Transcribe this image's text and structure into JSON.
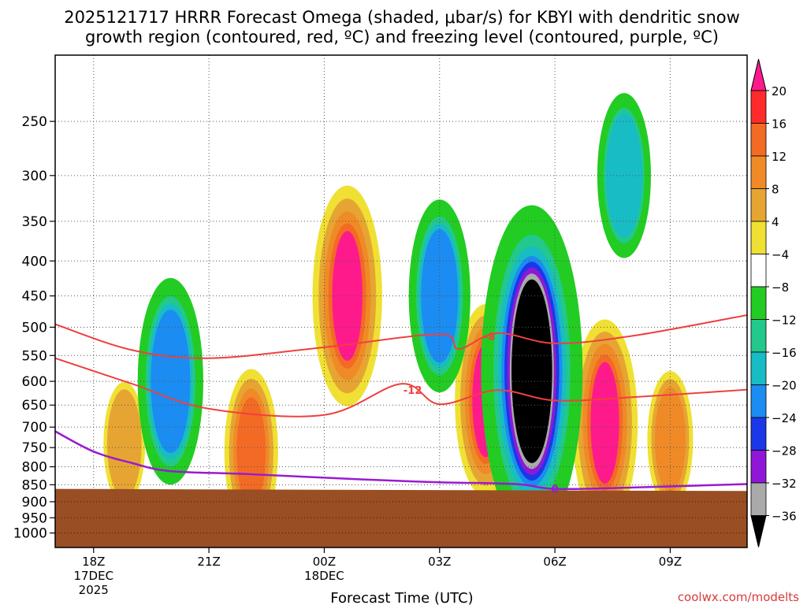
{
  "chart_data": {
    "type": "heatmap",
    "title_line1": "2025121717 HRRR Forecast Omega (shaded, μbar/s) for KBYI with dendritic snow",
    "title_line2": "growth region (contoured, red, ºC) and freezing level (contoured, purple, ºC)",
    "xlabel": "Forecast Time (UTC)",
    "ylabel": "",
    "watermark": "coolwx.com/modelts",
    "x_axis": {
      "hours_range": [
        -1,
        17
      ],
      "ticks": [
        {
          "hour": 0,
          "label": "18Z",
          "sub1": "17DEC",
          "sub2": "2025"
        },
        {
          "hour": 3,
          "label": "21Z",
          "sub1": "",
          "sub2": ""
        },
        {
          "hour": 6,
          "label": "00Z",
          "sub1": "18DEC",
          "sub2": ""
        },
        {
          "hour": 9,
          "label": "03Z",
          "sub1": "",
          "sub2": ""
        },
        {
          "hour": 12,
          "label": "06Z",
          "sub1": "",
          "sub2": ""
        },
        {
          "hour": 15,
          "label": "09Z",
          "sub1": "",
          "sub2": ""
        }
      ]
    },
    "y_axis": {
      "scale": "log-pressure",
      "range_hpa": [
        200,
        1050
      ],
      "ticks": [
        {
          "p": 250,
          "label": "250"
        },
        {
          "p": 300,
          "label": "300"
        },
        {
          "p": 350,
          "label": "350"
        },
        {
          "p": 400,
          "label": "400"
        },
        {
          "p": 450,
          "label": "450"
        },
        {
          "p": 500,
          "label": "500"
        },
        {
          "p": 550,
          "label": "550"
        },
        {
          "p": 600,
          "label": "600"
        },
        {
          "p": 650,
          "label": "650"
        },
        {
          "p": 700,
          "label": "700"
        },
        {
          "p": 750,
          "label": "750"
        },
        {
          "p": 800,
          "label": "800"
        },
        {
          "p": 850,
          "label": "850"
        },
        {
          "p": 900,
          "label": "900"
        },
        {
          "p": 950,
          "label": "950"
        },
        {
          "p": 1000,
          "label": "1000"
        }
      ]
    },
    "colorbar": {
      "labels": [
        "20",
        "16",
        "12",
        "8",
        "4",
        "−4",
        "−8",
        "−12",
        "−16",
        "−20",
        "−24",
        "−28",
        "−32",
        "−36"
      ],
      "colors": [
        "#ff1a8c",
        "#ff2a2a",
        "#f36a25",
        "#f08a27",
        "#e6a532",
        "#f0e033",
        "#ffffff",
        "#22cc22",
        "#22c88c",
        "#18bcc4",
        "#1a8cf2",
        "#1a38e8",
        "#8f18d8",
        "#aaaaaa",
        "#000000"
      ]
    },
    "omega_features": [
      {
        "kind": "rising",
        "center_hour": 6.6,
        "center_hpa": 450,
        "peak": 24,
        "levels": [
          "4",
          "8",
          "12",
          "16",
          "20"
        ]
      },
      {
        "kind": "rising",
        "center_hour": 13.3,
        "center_hpa": 690,
        "peak": 22,
        "levels": [
          "4",
          "8",
          "12",
          "16",
          "20"
        ]
      },
      {
        "kind": "rising",
        "center_hour": 4.1,
        "center_hpa": 760,
        "peak": 16,
        "levels": [
          "4",
          "8",
          "12",
          "16"
        ]
      },
      {
        "kind": "rising",
        "center_hour": 10.2,
        "center_hpa": 640,
        "peak": 20,
        "levels": [
          "4",
          "8",
          "12",
          "16",
          "20"
        ]
      },
      {
        "kind": "rising",
        "center_hour": 15.0,
        "center_hpa": 730,
        "peak": 12,
        "levels": [
          "4",
          "8",
          "12"
        ]
      },
      {
        "kind": "rising",
        "center_hour": 0.8,
        "center_hpa": 740,
        "peak": 10,
        "levels": [
          "4",
          "8"
        ]
      },
      {
        "kind": "sinking",
        "center_hour": 11.4,
        "center_hpa": 580,
        "peak": -40,
        "levels": [
          "-4",
          "-8",
          "-12",
          "-16",
          "-20",
          "-24",
          "-28",
          "-32",
          "-36"
        ]
      },
      {
        "kind": "sinking",
        "center_hour": 2.0,
        "center_hpa": 600,
        "peak": -22,
        "levels": [
          "-4",
          "-8",
          "-12",
          "-16",
          "-20"
        ]
      },
      {
        "kind": "sinking",
        "center_hour": 9.0,
        "center_hpa": 450,
        "peak": -20,
        "levels": [
          "-4",
          "-8",
          "-12",
          "-16",
          "-20"
        ]
      },
      {
        "kind": "sinking",
        "center_hour": 13.8,
        "center_hpa": 300,
        "peak": -16,
        "levels": [
          "-4",
          "-8",
          "-12",
          "-16"
        ]
      }
    ],
    "dgz_contours": [
      {
        "label": "-8",
        "label_hour": 10.3,
        "points": [
          [
            -1,
            495
          ],
          [
            1,
            540
          ],
          [
            3,
            555
          ],
          [
            6,
            535
          ],
          [
            9,
            512
          ],
          [
            9.5,
            538
          ],
          [
            10.5,
            510
          ],
          [
            12,
            528
          ],
          [
            14,
            515
          ],
          [
            17,
            480
          ]
        ]
      },
      {
        "label": "-12",
        "label_hour": 8.3,
        "points": [
          [
            -1,
            555
          ],
          [
            1,
            605
          ],
          [
            3,
            658
          ],
          [
            6,
            672
          ],
          [
            8,
            605
          ],
          [
            9,
            648
          ],
          [
            10.5,
            618
          ],
          [
            12,
            640
          ],
          [
            14,
            633
          ],
          [
            17,
            617
          ]
        ]
      }
    ],
    "freezing_level": {
      "label": "0",
      "label_hour": 12.0,
      "points": [
        [
          -1,
          710
        ],
        [
          0,
          760
        ],
        [
          1,
          790
        ],
        [
          2,
          812
        ],
        [
          4,
          820
        ],
        [
          7,
          835
        ],
        [
          9,
          843
        ],
        [
          11,
          848
        ],
        [
          12,
          862
        ],
        [
          14,
          858
        ],
        [
          17,
          848
        ]
      ]
    },
    "terrain": {
      "surface_hpa_left": 862,
      "surface_hpa_right": 868
    }
  }
}
